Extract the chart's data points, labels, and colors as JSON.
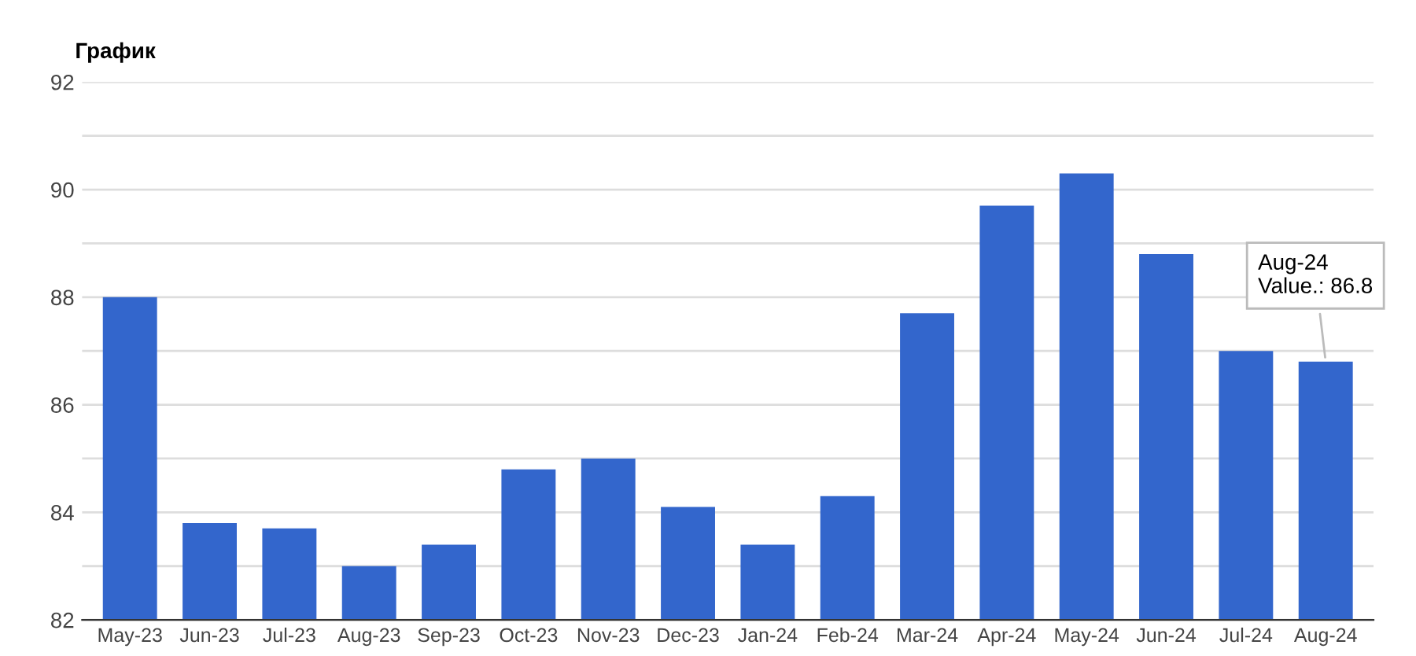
{
  "chart_data": {
    "type": "bar",
    "title": "График",
    "categories": [
      "May-23",
      "Jun-23",
      "Jul-23",
      "Aug-23",
      "Sep-23",
      "Oct-23",
      "Nov-23",
      "Dec-23",
      "Jan-24",
      "Feb-24",
      "Mar-24",
      "Apr-24",
      "May-24",
      "Jun-24",
      "Jul-24",
      "Aug-24"
    ],
    "values": [
      88.0,
      83.8,
      83.7,
      83.0,
      83.4,
      84.8,
      85.0,
      84.1,
      83.4,
      84.3,
      87.7,
      89.7,
      90.3,
      88.8,
      87.0,
      86.8
    ],
    "color": "#3366cc",
    "ylim": [
      82,
      92
    ],
    "yticks": [
      82,
      {
        "value": 83,
        "label": null
      },
      84,
      {
        "value": 85,
        "label": null
      },
      86,
      {
        "value": 87,
        "label": null
      },
      88,
      {
        "value": 89,
        "label": null
      },
      90,
      {
        "value": 91,
        "label": null
      },
      92
    ],
    "grid": "y",
    "annotations": [
      {
        "text": "Aug-24\nValue.: 86.8",
        "x": "Aug-24",
        "y": 86.8
      }
    ]
  }
}
